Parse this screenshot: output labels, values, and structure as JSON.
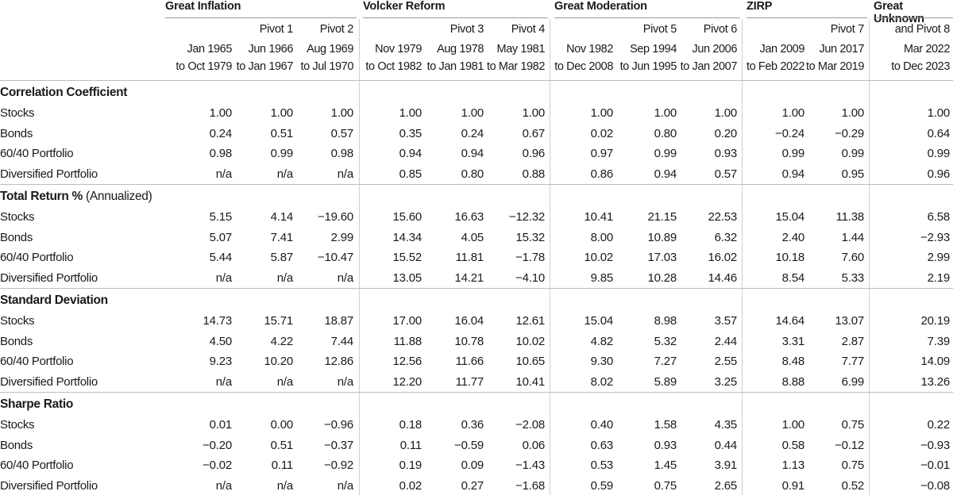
{
  "groups": [
    {
      "title": "Great Inflation",
      "periods": [
        {
          "pivot": "",
          "line1": "Jan 1965",
          "line2": "to Oct 1979"
        },
        {
          "pivot": "Pivot 1",
          "line1": "Jun 1966",
          "line2": "to Jan 1967"
        },
        {
          "pivot": "Pivot 2",
          "line1": "Aug 1969",
          "line2": "to Jul 1970"
        }
      ]
    },
    {
      "title": "Volcker Reform",
      "periods": [
        {
          "pivot": "",
          "line1": "Nov 1979",
          "line2": "to Oct 1982"
        },
        {
          "pivot": "Pivot 3",
          "line1": "Aug 1978",
          "line2": "to Jan 1981"
        },
        {
          "pivot": "Pivot 4",
          "line1": "May 1981",
          "line2": "to Mar 1982"
        }
      ]
    },
    {
      "title": "Great Moderation",
      "periods": [
        {
          "pivot": "",
          "line1": "Nov 1982",
          "line2": "to Dec 2008"
        },
        {
          "pivot": "Pivot 5",
          "line1": "Sep 1994",
          "line2": "to Jun 1995"
        },
        {
          "pivot": "Pivot 6",
          "line1": "Jun 2006",
          "line2": "to Jan 2007"
        }
      ]
    },
    {
      "title": "ZIRP",
      "periods": [
        {
          "pivot": "",
          "line1": "Jan 2009",
          "line2": "to Feb 2022"
        },
        {
          "pivot": "Pivot 7",
          "line1": "Jun 2017",
          "line2": "to Mar 2019"
        }
      ]
    },
    {
      "title": "Great Unknown",
      "periods": [
        {
          "pivot": "and Pivot 8",
          "line1": "Mar 2022",
          "line2": "to Dec 2023"
        }
      ]
    }
  ],
  "sections": [
    {
      "title": "Correlation Coefficient",
      "suffix": "",
      "rows": [
        {
          "label": "Stocks",
          "values": [
            "1.00",
            "1.00",
            "1.00",
            "1.00",
            "1.00",
            "1.00",
            "1.00",
            "1.00",
            "1.00",
            "1.00",
            "1.00",
            "1.00"
          ]
        },
        {
          "label": "Bonds",
          "values": [
            "0.24",
            "0.51",
            "0.57",
            "0.35",
            "0.24",
            "0.67",
            "0.02",
            "0.80",
            "0.20",
            "−0.24",
            "−0.29",
            "0.64"
          ]
        },
        {
          "label": "60/40 Portfolio",
          "values": [
            "0.98",
            "0.99",
            "0.98",
            "0.94",
            "0.94",
            "0.96",
            "0.97",
            "0.99",
            "0.93",
            "0.99",
            "0.99",
            "0.99"
          ]
        },
        {
          "label": "Diversified Portfolio",
          "values": [
            "n/a",
            "n/a",
            "n/a",
            "0.85",
            "0.80",
            "0.88",
            "0.86",
            "0.94",
            "0.57",
            "0.94",
            "0.95",
            "0.96"
          ]
        }
      ]
    },
    {
      "title": "Total Return %",
      "suffix": " (Annualized)",
      "rows": [
        {
          "label": "Stocks",
          "values": [
            "5.15",
            "4.14",
            "−19.60",
            "15.60",
            "16.63",
            "−12.32",
            "10.41",
            "21.15",
            "22.53",
            "15.04",
            "11.38",
            "6.58"
          ]
        },
        {
          "label": "Bonds",
          "values": [
            "5.07",
            "7.41",
            "2.99",
            "14.34",
            "4.05",
            "15.32",
            "8.00",
            "10.89",
            "6.32",
            "2.40",
            "1.44",
            "−2.93"
          ]
        },
        {
          "label": "60/40 Portfolio",
          "values": [
            "5.44",
            "5.87",
            "−10.47",
            "15.52",
            "11.81",
            "−1.78",
            "10.02",
            "17.03",
            "16.02",
            "10.18",
            "7.60",
            "2.99"
          ]
        },
        {
          "label": "Diversified Portfolio",
          "values": [
            "n/a",
            "n/a",
            "n/a",
            "13.05",
            "14.21",
            "−4.10",
            "9.85",
            "10.28",
            "14.46",
            "8.54",
            "5.33",
            "2.19"
          ]
        }
      ]
    },
    {
      "title": "Standard Deviation",
      "suffix": "",
      "rows": [
        {
          "label": "Stocks",
          "values": [
            "14.73",
            "15.71",
            "18.87",
            "17.00",
            "16.04",
            "12.61",
            "15.04",
            "8.98",
            "3.57",
            "14.64",
            "13.07",
            "20.19"
          ]
        },
        {
          "label": "Bonds",
          "values": [
            "4.50",
            "4.22",
            "7.44",
            "11.88",
            "10.78",
            "10.02",
            "4.82",
            "5.32",
            "2.44",
            "3.31",
            "2.87",
            "7.39"
          ]
        },
        {
          "label": "60/40 Portfolio",
          "values": [
            "9.23",
            "10.20",
            "12.86",
            "12.56",
            "11.66",
            "10.65",
            "9.30",
            "7.27",
            "2.55",
            "8.48",
            "7.77",
            "14.09"
          ]
        },
        {
          "label": "Diversified Portfolio",
          "values": [
            "n/a",
            "n/a",
            "n/a",
            "12.20",
            "11.77",
            "10.41",
            "8.02",
            "5.89",
            "3.25",
            "8.88",
            "6.99",
            "13.26"
          ]
        }
      ]
    },
    {
      "title": "Sharpe Ratio",
      "suffix": "",
      "rows": [
        {
          "label": "Stocks",
          "values": [
            "0.01",
            "0.00",
            "−0.96",
            "0.18",
            "0.36",
            "−2.08",
            "0.40",
            "1.58",
            "4.35",
            "1.00",
            "0.75",
            "0.22"
          ]
        },
        {
          "label": "Bonds",
          "values": [
            "−0.20",
            "0.51",
            "−0.37",
            "0.11",
            "−0.59",
            "0.06",
            "0.63",
            "0.93",
            "0.44",
            "0.58",
            "−0.12",
            "−0.93"
          ]
        },
        {
          "label": "60/40 Portfolio",
          "values": [
            "−0.02",
            "0.11",
            "−0.92",
            "0.19",
            "0.09",
            "−1.43",
            "0.53",
            "1.45",
            "3.91",
            "1.13",
            "0.75",
            "−0.01"
          ]
        },
        {
          "label": "Diversified Portfolio",
          "values": [
            "n/a",
            "n/a",
            "n/a",
            "0.02",
            "0.27",
            "−1.68",
            "0.59",
            "0.75",
            "2.65",
            "0.91",
            "0.52",
            "−0.08"
          ]
        }
      ]
    }
  ]
}
